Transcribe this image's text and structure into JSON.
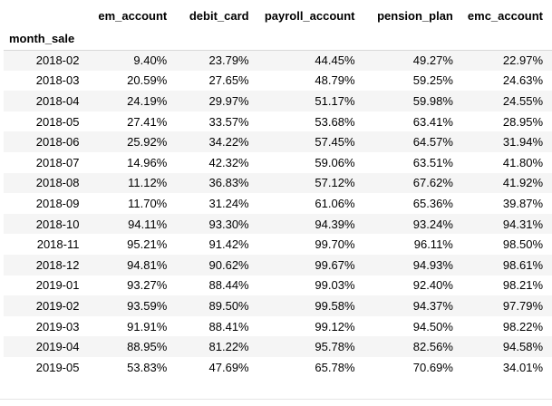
{
  "table": {
    "columns": [
      "em_account",
      "debit_card",
      "payroll_account",
      "pension_plan",
      "emc_account"
    ],
    "index_name": "month_sale",
    "rows": [
      {
        "month": "2018-02",
        "values": [
          "9.40%",
          "23.79%",
          "44.45%",
          "49.27%",
          "22.97%"
        ]
      },
      {
        "month": "2018-03",
        "values": [
          "20.59%",
          "27.65%",
          "48.79%",
          "59.25%",
          "24.63%"
        ]
      },
      {
        "month": "2018-04",
        "values": [
          "24.19%",
          "29.97%",
          "51.17%",
          "59.98%",
          "24.55%"
        ]
      },
      {
        "month": "2018-05",
        "values": [
          "27.41%",
          "33.57%",
          "53.68%",
          "63.41%",
          "28.95%"
        ]
      },
      {
        "month": "2018-06",
        "values": [
          "25.92%",
          "34.22%",
          "57.45%",
          "64.57%",
          "31.94%"
        ]
      },
      {
        "month": "2018-07",
        "values": [
          "14.96%",
          "42.32%",
          "59.06%",
          "63.51%",
          "41.80%"
        ]
      },
      {
        "month": "2018-08",
        "values": [
          "11.12%",
          "36.83%",
          "57.12%",
          "67.62%",
          "41.92%"
        ]
      },
      {
        "month": "2018-09",
        "values": [
          "11.70%",
          "31.24%",
          "61.06%",
          "65.36%",
          "39.87%"
        ]
      },
      {
        "month": "2018-10",
        "values": [
          "94.11%",
          "93.30%",
          "94.39%",
          "93.24%",
          "94.31%"
        ]
      },
      {
        "month": "2018-11",
        "values": [
          "95.21%",
          "91.42%",
          "99.70%",
          "96.11%",
          "98.50%"
        ]
      },
      {
        "month": "2018-12",
        "values": [
          "94.81%",
          "90.62%",
          "99.67%",
          "94.93%",
          "98.61%"
        ]
      },
      {
        "month": "2019-01",
        "values": [
          "93.27%",
          "88.44%",
          "99.03%",
          "92.40%",
          "98.21%"
        ]
      },
      {
        "month": "2019-02",
        "values": [
          "93.59%",
          "89.50%",
          "99.58%",
          "94.37%",
          "97.79%"
        ]
      },
      {
        "month": "2019-03",
        "values": [
          "91.91%",
          "88.41%",
          "99.12%",
          "94.50%",
          "98.22%"
        ]
      },
      {
        "month": "2019-04",
        "values": [
          "88.95%",
          "81.22%",
          "95.78%",
          "82.56%",
          "94.58%"
        ]
      },
      {
        "month": "2019-05",
        "values": [
          "53.83%",
          "47.69%",
          "65.78%",
          "70.69%",
          "34.01%"
        ]
      }
    ]
  }
}
